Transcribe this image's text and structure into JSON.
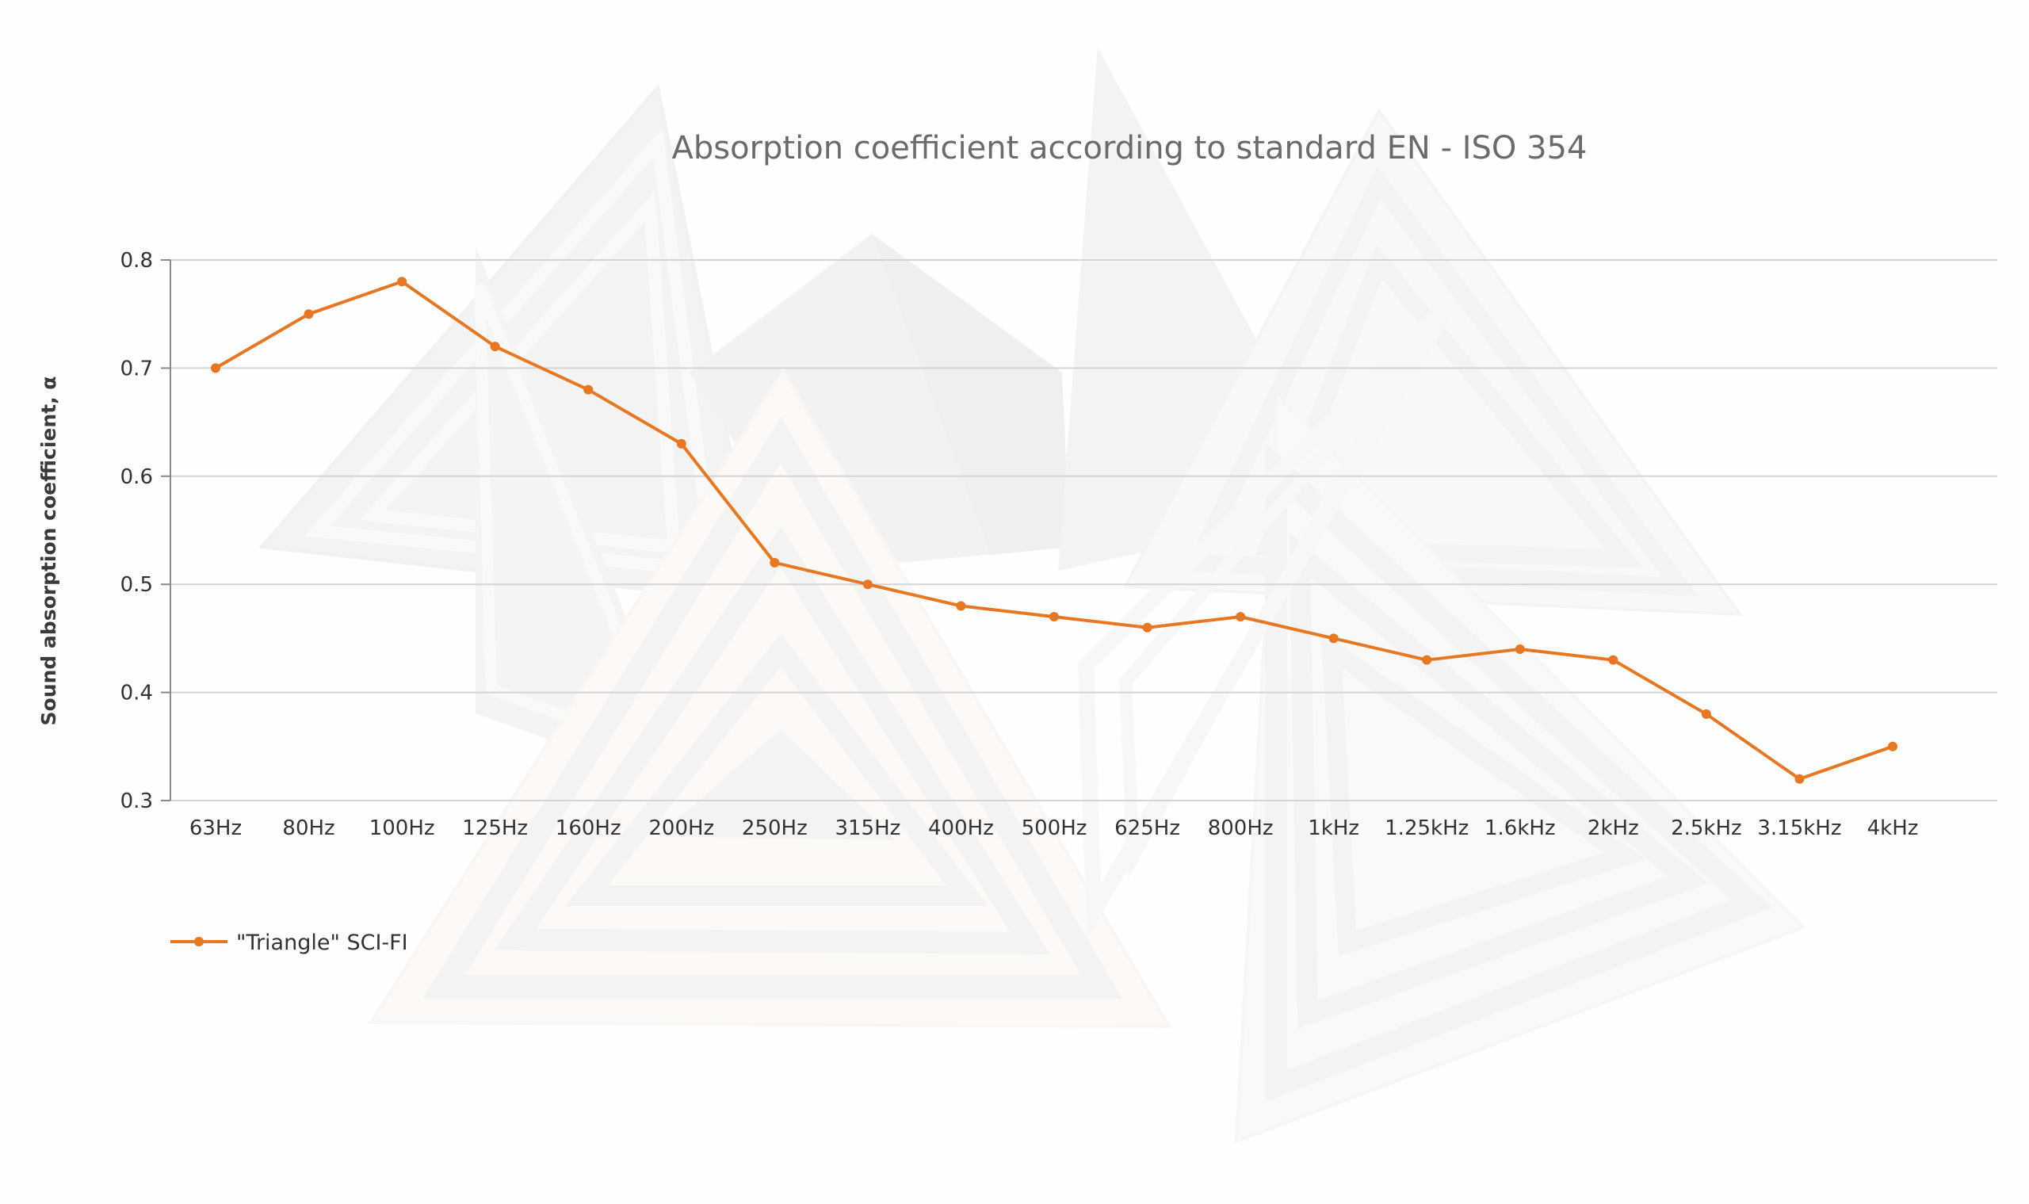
{
  "chart_data": {
    "type": "line",
    "title": "Absorption coefficient according to standard EN - ISO 354",
    "xlabel": "",
    "ylabel": "Sound absorption coefficient, α",
    "ylim": [
      0.3,
      0.8
    ],
    "yticks": [
      "0.3",
      "0.4",
      "0.5",
      "0.6",
      "0.7",
      "0.8"
    ],
    "grid": true,
    "legend_position": "bottom-left",
    "categories": [
      "63Hz",
      "80Hz",
      "100Hz",
      "125Hz",
      "160Hz",
      "200Hz",
      "250Hz",
      "315Hz",
      "400Hz",
      "500Hz",
      "625Hz",
      "800Hz",
      "1kHz",
      "1.25kHz",
      "1.6kHz",
      "2kHz",
      "2.5kHz",
      "3.15kHz",
      "4kHz"
    ],
    "series": [
      {
        "name": "\"Triangle\" SCI-FI",
        "color": "#e87722",
        "values": [
          0.7,
          0.75,
          0.78,
          0.72,
          0.68,
          0.63,
          0.52,
          0.5,
          0.48,
          0.47,
          0.46,
          0.47,
          0.45,
          0.43,
          0.44,
          0.43,
          0.38,
          0.32,
          0.35
        ]
      }
    ]
  },
  "background": {
    "description_icon": "triangle-acoustic-panels-icon"
  }
}
